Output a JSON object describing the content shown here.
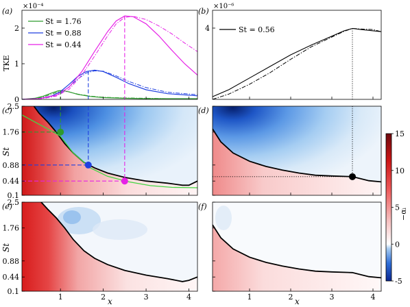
{
  "figure": {
    "panel_labels": [
      "(a)",
      "(b)",
      "(c)",
      "(d)",
      "(e)",
      "(f)"
    ],
    "tke_ylabel": "TKE",
    "tke_multiplier_a": "×10⁻⁴",
    "tke_multiplier_b": "×10⁻⁶",
    "st_ylabel": "St",
    "x_label": "x",
    "colorbar_label": "−αᵢ",
    "colors": {
      "green": "#2e9a2e",
      "blue": "#1f3fe0",
      "magenta": "#e622e6",
      "bright_green": "#44d644",
      "neutral_curve": "#000000"
    }
  },
  "chart_data": [
    {
      "panel": "(a)",
      "type": "line",
      "xlabel": "",
      "ylabel": "TKE",
      "xlim": [
        0.1,
        4.2
      ],
      "ylim": [
        0,
        2.5
      ],
      "yscale_multiplier": "×10⁻⁴",
      "yticks": [
        "0",
        "1",
        "2"
      ],
      "legend_position": "top-left",
      "series": [
        {
          "name": "St = 1.76",
          "legend_text": "St = 1.76",
          "color": "#2e9a2e",
          "x": [
            0.1,
            0.4,
            0.6,
            0.8,
            0.95,
            1.05,
            1.2,
            1.4,
            1.7,
            2.0,
            2.5,
            3.0,
            3.5,
            4.2
          ],
          "y": [
            0.0,
            0.03,
            0.09,
            0.18,
            0.24,
            0.25,
            0.21,
            0.14,
            0.08,
            0.05,
            0.03,
            0.02,
            0.02,
            0.02
          ],
          "y_alt": [
            0.0,
            0.02,
            0.07,
            0.15,
            0.21,
            0.23,
            0.21,
            0.15,
            0.09,
            0.06,
            0.04,
            0.03,
            0.02,
            0.02
          ]
        },
        {
          "name": "St = 0.88",
          "legend_text": "St = 0.88",
          "color": "#1f3fe0",
          "x": [
            0.1,
            0.5,
            0.8,
            1.0,
            1.2,
            1.4,
            1.6,
            1.8,
            2.0,
            2.3,
            2.6,
            3.0,
            3.5,
            4.2
          ],
          "y": [
            0.0,
            0.02,
            0.1,
            0.22,
            0.42,
            0.64,
            0.78,
            0.82,
            0.78,
            0.62,
            0.44,
            0.27,
            0.16,
            0.1
          ],
          "y_alt": [
            0.0,
            0.01,
            0.07,
            0.17,
            0.35,
            0.57,
            0.74,
            0.8,
            0.79,
            0.66,
            0.5,
            0.33,
            0.2,
            0.13
          ]
        },
        {
          "name": "St = 0.44",
          "legend_text": "St = 0.44",
          "color": "#e622e6",
          "x": [
            0.1,
            0.5,
            0.9,
            1.2,
            1.5,
            1.8,
            2.1,
            2.3,
            2.5,
            2.7,
            3.0,
            3.3,
            3.6,
            3.9,
            4.2
          ],
          "y": [
            0.0,
            0.02,
            0.12,
            0.34,
            0.78,
            1.35,
            1.9,
            2.2,
            2.34,
            2.32,
            2.12,
            1.78,
            1.38,
            1.0,
            0.68
          ],
          "y_alt": [
            0.0,
            0.01,
            0.09,
            0.28,
            0.68,
            1.22,
            1.78,
            2.12,
            2.3,
            2.33,
            2.24,
            2.06,
            1.84,
            1.58,
            1.34
          ]
        }
      ],
      "markers": [
        {
          "series": "St = 1.76",
          "x": 1.0,
          "y": 0.25
        },
        {
          "series": "St = 0.88",
          "x": 1.65,
          "y": 0.8
        },
        {
          "series": "St = 0.44",
          "x": 2.5,
          "y": 2.34
        }
      ]
    },
    {
      "panel": "(b)",
      "type": "line",
      "xlabel": "",
      "ylabel": "",
      "xlim": [
        0.1,
        4.2
      ],
      "ylim": [
        0,
        5
      ],
      "yscale_multiplier": "×10⁻⁶",
      "yticks": [
        "4"
      ],
      "legend_position": "top-left",
      "series": [
        {
          "name": "St = 0.56",
          "legend_text": "St = 0.56",
          "color": "#000000",
          "x": [
            0.1,
            0.5,
            1.0,
            1.5,
            2.0,
            2.5,
            3.0,
            3.3,
            3.5,
            3.7,
            4.0,
            4.2
          ],
          "y": [
            0.15,
            0.55,
            1.2,
            1.85,
            2.5,
            3.05,
            3.55,
            3.85,
            3.98,
            3.92,
            3.85,
            3.8
          ],
          "y_alt": [
            0.0,
            0.3,
            0.85,
            1.5,
            2.25,
            2.95,
            3.5,
            3.82,
            3.98,
            3.95,
            3.92,
            3.8
          ]
        }
      ],
      "markers": [
        {
          "x": 3.5,
          "y": 3.98
        }
      ]
    },
    {
      "panel": "(c)",
      "type": "heatmap",
      "xlabel": "",
      "ylabel": "St",
      "xlim": [
        0.1,
        4.2
      ],
      "ylim": [
        0.1,
        2.5
      ],
      "yticks": [
        "2.5",
        "1.76",
        "0.88",
        "0.44",
        "0.1"
      ],
      "colormap": "diverging red-white-blue",
      "neutral_curve": {
        "x": [
          0.38,
          0.5,
          0.7,
          0.9,
          1.1,
          1.3,
          1.55,
          1.8,
          2.1,
          2.5,
          3.0,
          3.5,
          3.85,
          4.0,
          4.2
        ],
        "y": [
          2.5,
          2.3,
          2.05,
          1.76,
          1.45,
          1.2,
          0.95,
          0.8,
          0.66,
          0.54,
          0.44,
          0.39,
          0.34,
          0.34,
          0.44
        ]
      },
      "green_curve": {
        "x": [
          0.1,
          0.4,
          0.7,
          1.0,
          1.3,
          1.7,
          2.1,
          2.6,
          3.1,
          3.6,
          4.2
        ],
        "y": [
          2.25,
          2.05,
          1.85,
          1.65,
          1.2,
          0.8,
          0.57,
          0.42,
          0.33,
          0.29,
          0.28
        ]
      },
      "markers": [
        {
          "x": 1.0,
          "y": 1.76,
          "color": "#2e9a2e"
        },
        {
          "x": 1.65,
          "y": 0.88,
          "color": "#1f3fe0"
        },
        {
          "x": 2.5,
          "y": 0.44,
          "color": "#e622e6"
        }
      ]
    },
    {
      "panel": "(d)",
      "type": "heatmap",
      "xlabel": "",
      "ylabel": "",
      "xlim": [
        0.1,
        4.2
      ],
      "ylim": [
        0.1,
        2.5
      ],
      "colormap": "diverging red-white-blue",
      "neutral_curve": {
        "x": [
          0.1,
          0.3,
          0.6,
          1.0,
          1.4,
          1.8,
          2.2,
          2.6,
          3.0,
          3.5,
          3.9,
          4.2
        ],
        "y": [
          1.85,
          1.5,
          1.2,
          0.98,
          0.84,
          0.74,
          0.66,
          0.6,
          0.58,
          0.56,
          0.45,
          0.42
        ]
      },
      "markers": [
        {
          "x": 3.5,
          "y": 0.56,
          "color": "#000000"
        }
      ]
    },
    {
      "panel": "(e)",
      "type": "heatmap",
      "xlabel": "x",
      "ylabel": "St",
      "xlim": [
        0.1,
        4.2
      ],
      "ylim": [
        0.1,
        2.5
      ],
      "xticks": [
        "1",
        "2",
        "3",
        "4"
      ],
      "yticks": [
        "2.5",
        "1.76",
        "0.88",
        "0.44",
        "0.1"
      ],
      "colormap": "diverging red-white-blue",
      "neutral_curve": {
        "x": [
          0.55,
          0.7,
          0.9,
          1.1,
          1.3,
          1.55,
          1.8,
          2.1,
          2.5,
          3.0,
          3.5,
          3.85,
          4.0,
          4.2
        ],
        "y": [
          2.5,
          2.3,
          2.05,
          1.76,
          1.45,
          1.15,
          0.95,
          0.78,
          0.62,
          0.49,
          0.4,
          0.33,
          0.36,
          0.44
        ]
      }
    },
    {
      "panel": "(f)",
      "type": "heatmap",
      "xlabel": "x",
      "ylabel": "",
      "xlim": [
        0.1,
        4.2
      ],
      "ylim": [
        0.1,
        2.5
      ],
      "xticks": [
        "1",
        "2",
        "3",
        "4"
      ],
      "colormap": "diverging red-white-blue",
      "neutral_curve": {
        "x": [
          0.1,
          0.3,
          0.6,
          1.0,
          1.4,
          1.8,
          2.2,
          2.6,
          3.0,
          3.5,
          3.9,
          4.2
        ],
        "y": [
          1.85,
          1.5,
          1.2,
          0.98,
          0.84,
          0.74,
          0.66,
          0.6,
          0.58,
          0.56,
          0.45,
          0.42
        ]
      }
    },
    {
      "panel": "colorbar",
      "type": "colorbar",
      "label": "−αᵢ",
      "range": [
        -5,
        15
      ],
      "ticks": [
        "15",
        "10",
        "5",
        "0",
        "-5"
      ]
    }
  ]
}
